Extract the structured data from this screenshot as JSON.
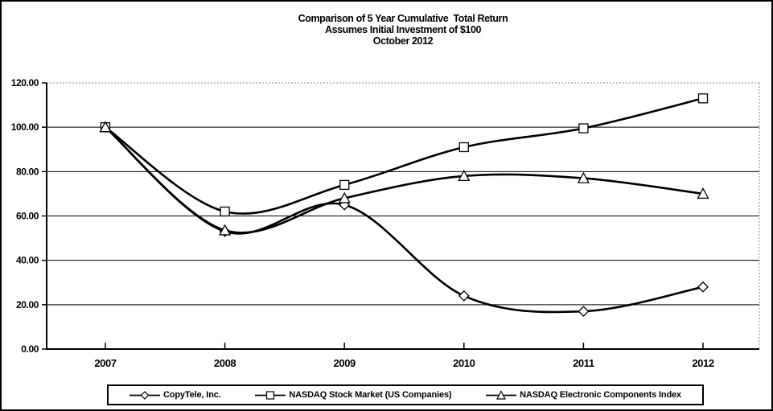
{
  "title": {
    "line1": "Comparison of 5 Year Cumulative  Total Return",
    "line2": "Assumes Initial Investment of $100",
    "line3": "October 2012"
  },
  "chart_data": {
    "type": "line",
    "title": "Comparison of 5 Year Cumulative Total Return",
    "subtitle": "Assumes Initial Investment of $100",
    "subtitle2": "October 2012",
    "x": [
      "2007",
      "2008",
      "2009",
      "2010",
      "2011",
      "2012"
    ],
    "series": [
      {
        "name": "CopyTele, Inc.",
        "marker": "diamond",
        "values": [
          100.0,
          53.0,
          65.0,
          24.0,
          17.0,
          28.0
        ]
      },
      {
        "name": "NASDAQ Stock Market (US Companies)",
        "marker": "square",
        "values": [
          100.0,
          62.0,
          74.0,
          91.0,
          99.5,
          113.0
        ]
      },
      {
        "name": "NASDAQ Electronic Components Index",
        "marker": "triangle",
        "values": [
          100.0,
          53.5,
          68.0,
          78.0,
          77.0,
          70.0
        ]
      }
    ],
    "ylim": [
      0,
      120
    ],
    "ytick_step": 20,
    "ytick_labels": [
      "0.00",
      "20.00",
      "40.00",
      "60.00",
      "80.00",
      "100.00",
      "120.00"
    ],
    "xlabel": "",
    "ylabel": "",
    "grid": true,
    "smoothed": true,
    "legend_position": "bottom",
    "line_color": "#000000",
    "marker_fill": "#ffffff",
    "frame_dash_color": "#888888"
  }
}
